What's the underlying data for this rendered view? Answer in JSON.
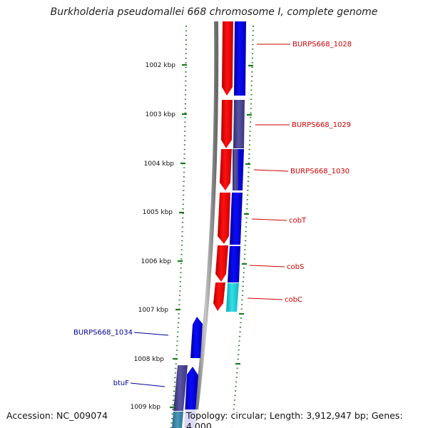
{
  "title": "Burkholderia pseudomallei 668 chromosome I, complete genome",
  "footer": {
    "accession": "Accession: NC_009074",
    "summary": "Topology: circular; Length: 3,912,947 bp; Genes: 4,000"
  },
  "colors": {
    "reverse_gene": "#ff0000",
    "forward_gene": "#0000ff",
    "other_gene": "#4a4590",
    "cyan_gene": "#1ec8d4",
    "label_right": "#cc0000",
    "label_left": "#000099",
    "tick": "#1a7a1a",
    "backbone": "#8c8c8c"
  },
  "scale_ticks": [
    "1002 kbp",
    "1003 kbp",
    "1004 kbp",
    "1005 kbp",
    "1006 kbp",
    "1007 kbp",
    "1008 kbp",
    "1009 kbp"
  ],
  "genes_right": [
    {
      "label": "BURPS668_1028"
    },
    {
      "label": "BURPS668_1029"
    },
    {
      "label": "BURPS668_1030"
    },
    {
      "label": "cobT"
    },
    {
      "label": "cobS"
    },
    {
      "label": "cobC"
    }
  ],
  "genes_left": [
    {
      "label": "BURPS668_1034"
    },
    {
      "label": "btuF"
    }
  ]
}
